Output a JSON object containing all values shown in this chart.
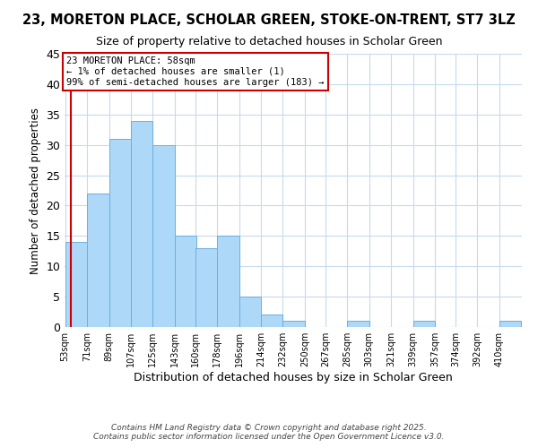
{
  "title": "23, MORETON PLACE, SCHOLAR GREEN, STOKE-ON-TRENT, ST7 3LZ",
  "subtitle": "Size of property relative to detached houses in Scholar Green",
  "xlabel": "Distribution of detached houses by size in Scholar Green",
  "ylabel": "Number of detached properties",
  "bar_values": [
    14,
    22,
    31,
    34,
    30,
    15,
    13,
    15,
    5,
    2,
    1,
    0,
    0,
    1,
    0,
    0,
    1,
    0,
    0,
    0,
    1
  ],
  "bin_edges": [
    53,
    71,
    89,
    107,
    125,
    143,
    160,
    178,
    196,
    214,
    232,
    250,
    267,
    285,
    303,
    321,
    339,
    357,
    374,
    392,
    410
  ],
  "bin_width": 18,
  "x_tick_labels": [
    "53sqm",
    "71sqm",
    "89sqm",
    "107sqm",
    "125sqm",
    "143sqm",
    "160sqm",
    "178sqm",
    "196sqm",
    "214sqm",
    "232sqm",
    "250sqm",
    "267sqm",
    "285sqm",
    "303sqm",
    "321sqm",
    "339sqm",
    "357sqm",
    "374sqm",
    "392sqm",
    "410sqm"
  ],
  "bar_color": "#add8f7",
  "bar_edge_color": "#6ab0e0",
  "ylim": [
    0,
    45
  ],
  "yticks": [
    0,
    5,
    10,
    15,
    20,
    25,
    30,
    35,
    40,
    45
  ],
  "vline_x": 58,
  "vline_color": "#cc0000",
  "annotation_text": "23 MORETON PLACE: 58sqm\n← 1% of detached houses are smaller (1)\n99% of semi-detached houses are larger (183) →",
  "annotation_box_color": "#ffffff",
  "annotation_border_color": "#cc0000",
  "footer_line1": "Contains HM Land Registry data © Crown copyright and database right 2025.",
  "footer_line2": "Contains public sector information licensed under the Open Government Licence v3.0.",
  "bg_color": "#ffffff",
  "grid_color": "#c8daea"
}
